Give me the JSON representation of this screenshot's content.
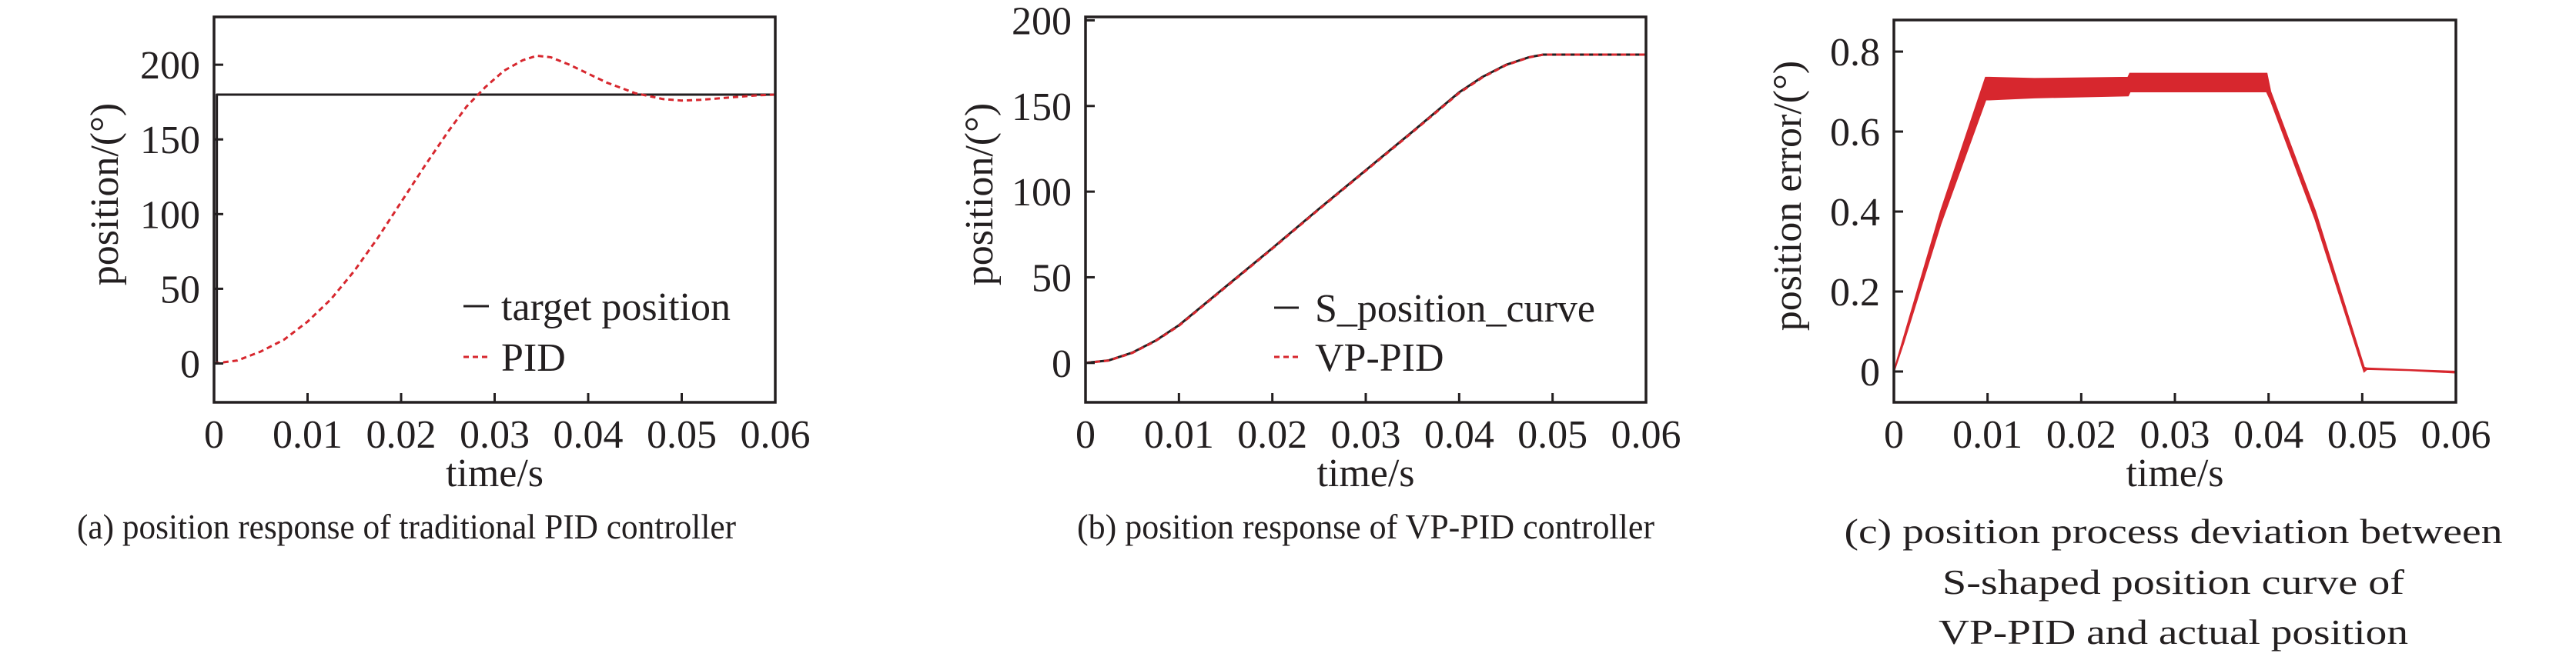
{
  "colors": {
    "black": "#231f20",
    "red": "#d7272e"
  },
  "chart_data": [
    {
      "id": "a",
      "type": "line",
      "caption": [
        "(a) position response of traditional PID controller"
      ],
      "xlabel": "time/s",
      "ylabel": "position/(°)",
      "xlim": [
        0,
        0.06
      ],
      "ylim": [
        -26,
        232
      ],
      "xticks": [
        0,
        0.01,
        0.02,
        0.03,
        0.04,
        0.05,
        0.06
      ],
      "xtick_labels": [
        "0",
        "0.01",
        "0.02",
        "0.03",
        "0.04",
        "0.05",
        "0.06"
      ],
      "yticks": [
        0,
        50,
        100,
        150,
        200
      ],
      "ytick_labels": [
        "0",
        "50",
        "100",
        "150",
        "200"
      ],
      "grid": false,
      "legend_position": "bottom-right",
      "series": [
        {
          "name": "target position",
          "style": "solid",
          "color": "#231f20",
          "x": [
            0,
            0.0003,
            0.0003,
            0.06
          ],
          "y": [
            0,
            0,
            180,
            180
          ]
        },
        {
          "name": "PID",
          "style": "dashed",
          "color": "#d7272e",
          "x": [
            0,
            0.0025,
            0.005,
            0.0075,
            0.01,
            0.0125,
            0.015,
            0.0175,
            0.02,
            0.0225,
            0.025,
            0.027,
            0.029,
            0.031,
            0.033,
            0.0345,
            0.036,
            0.038,
            0.04,
            0.042,
            0.045,
            0.048,
            0.05,
            0.052,
            0.055,
            0.058,
            0.06
          ],
          "y": [
            0,
            2,
            8,
            16,
            28,
            43,
            62,
            84,
            108,
            132,
            155,
            172,
            185,
            196,
            203,
            206,
            205,
            200,
            194,
            188,
            181,
            177,
            176,
            176.5,
            178,
            179.5,
            180
          ]
        }
      ]
    },
    {
      "id": "b",
      "type": "line",
      "caption": [
        "(b) position response of VP-PID controller"
      ],
      "xlabel": "time/s",
      "ylabel": "position/(°)",
      "xlim": [
        0,
        0.06
      ],
      "ylim": [
        -23,
        202
      ],
      "xticks": [
        0,
        0.01,
        0.02,
        0.03,
        0.04,
        0.05,
        0.06
      ],
      "xtick_labels": [
        "0",
        "0.01",
        "0.02",
        "0.03",
        "0.04",
        "0.05",
        "0.06"
      ],
      "yticks": [
        0,
        50,
        100,
        150,
        200
      ],
      "ytick_labels": [
        "0",
        "50",
        "100",
        "150",
        "200"
      ],
      "grid": false,
      "legend_position": "bottom-right",
      "series": [
        {
          "name": "S_position_curve",
          "style": "solid",
          "color": "#231f20",
          "x": [
            0,
            0.0025,
            0.005,
            0.0075,
            0.01,
            0.015,
            0.02,
            0.025,
            0.03,
            0.035,
            0.04,
            0.0425,
            0.045,
            0.0475,
            0.049,
            0.06
          ],
          "y": [
            0,
            1.5,
            6,
            13,
            22,
            44.5,
            67,
            90,
            112.5,
            135,
            158,
            167,
            174,
            178.5,
            180,
            180
          ]
        },
        {
          "name": "VP-PID",
          "style": "dashed",
          "color": "#d7272e",
          "x": [
            0,
            0.0025,
            0.005,
            0.0075,
            0.01,
            0.015,
            0.02,
            0.025,
            0.03,
            0.035,
            0.04,
            0.0425,
            0.045,
            0.0475,
            0.049,
            0.06
          ],
          "y": [
            0,
            1.4,
            5.8,
            12.8,
            21.7,
            44.2,
            66.7,
            89.7,
            112.2,
            134.7,
            157.6,
            166.7,
            173.8,
            178.4,
            180,
            180
          ]
        }
      ]
    },
    {
      "id": "c",
      "type": "area",
      "caption": [
        "(c) position process deviation between",
        "S-shaped position curve of",
        "VP-PID and actual position"
      ],
      "xlabel": "time/s",
      "ylabel": "position error/(°)",
      "xlim": [
        0,
        0.06
      ],
      "ylim": [
        -0.077,
        0.879
      ],
      "xticks": [
        0,
        0.01,
        0.02,
        0.03,
        0.04,
        0.05,
        0.06
      ],
      "xtick_labels": [
        "0",
        "0.01",
        "0.02",
        "0.03",
        "0.04",
        "0.05",
        "0.06"
      ],
      "yticks": [
        0,
        0.2,
        0.4,
        0.6,
        0.8
      ],
      "ytick_labels": [
        "0",
        "0.2",
        "0.4",
        "0.6",
        "0.8"
      ],
      "grid": false,
      "series": [
        {
          "style": "band",
          "color": "#d7272e",
          "x": [
            0,
            0.001,
            0.005,
            0.0098,
            0.0102,
            0.015,
            0.025,
            0.0252,
            0.035,
            0.0398,
            0.0402,
            0.045,
            0.0502,
            0.0505,
            0.055,
            0.06
          ],
          "upper": [
            0.0,
            0.08,
            0.4,
            0.735,
            0.735,
            0.732,
            0.735,
            0.745,
            0.745,
            0.745,
            0.7,
            0.4,
            0.01,
            0.008,
            0.004,
            0.0
          ],
          "lower": [
            0.0,
            0.07,
            0.37,
            0.68,
            0.68,
            0.685,
            0.69,
            0.7,
            0.7,
            0.7,
            0.68,
            0.38,
            0.0,
            0.006,
            0.003,
            -0.003
          ]
        }
      ]
    }
  ]
}
